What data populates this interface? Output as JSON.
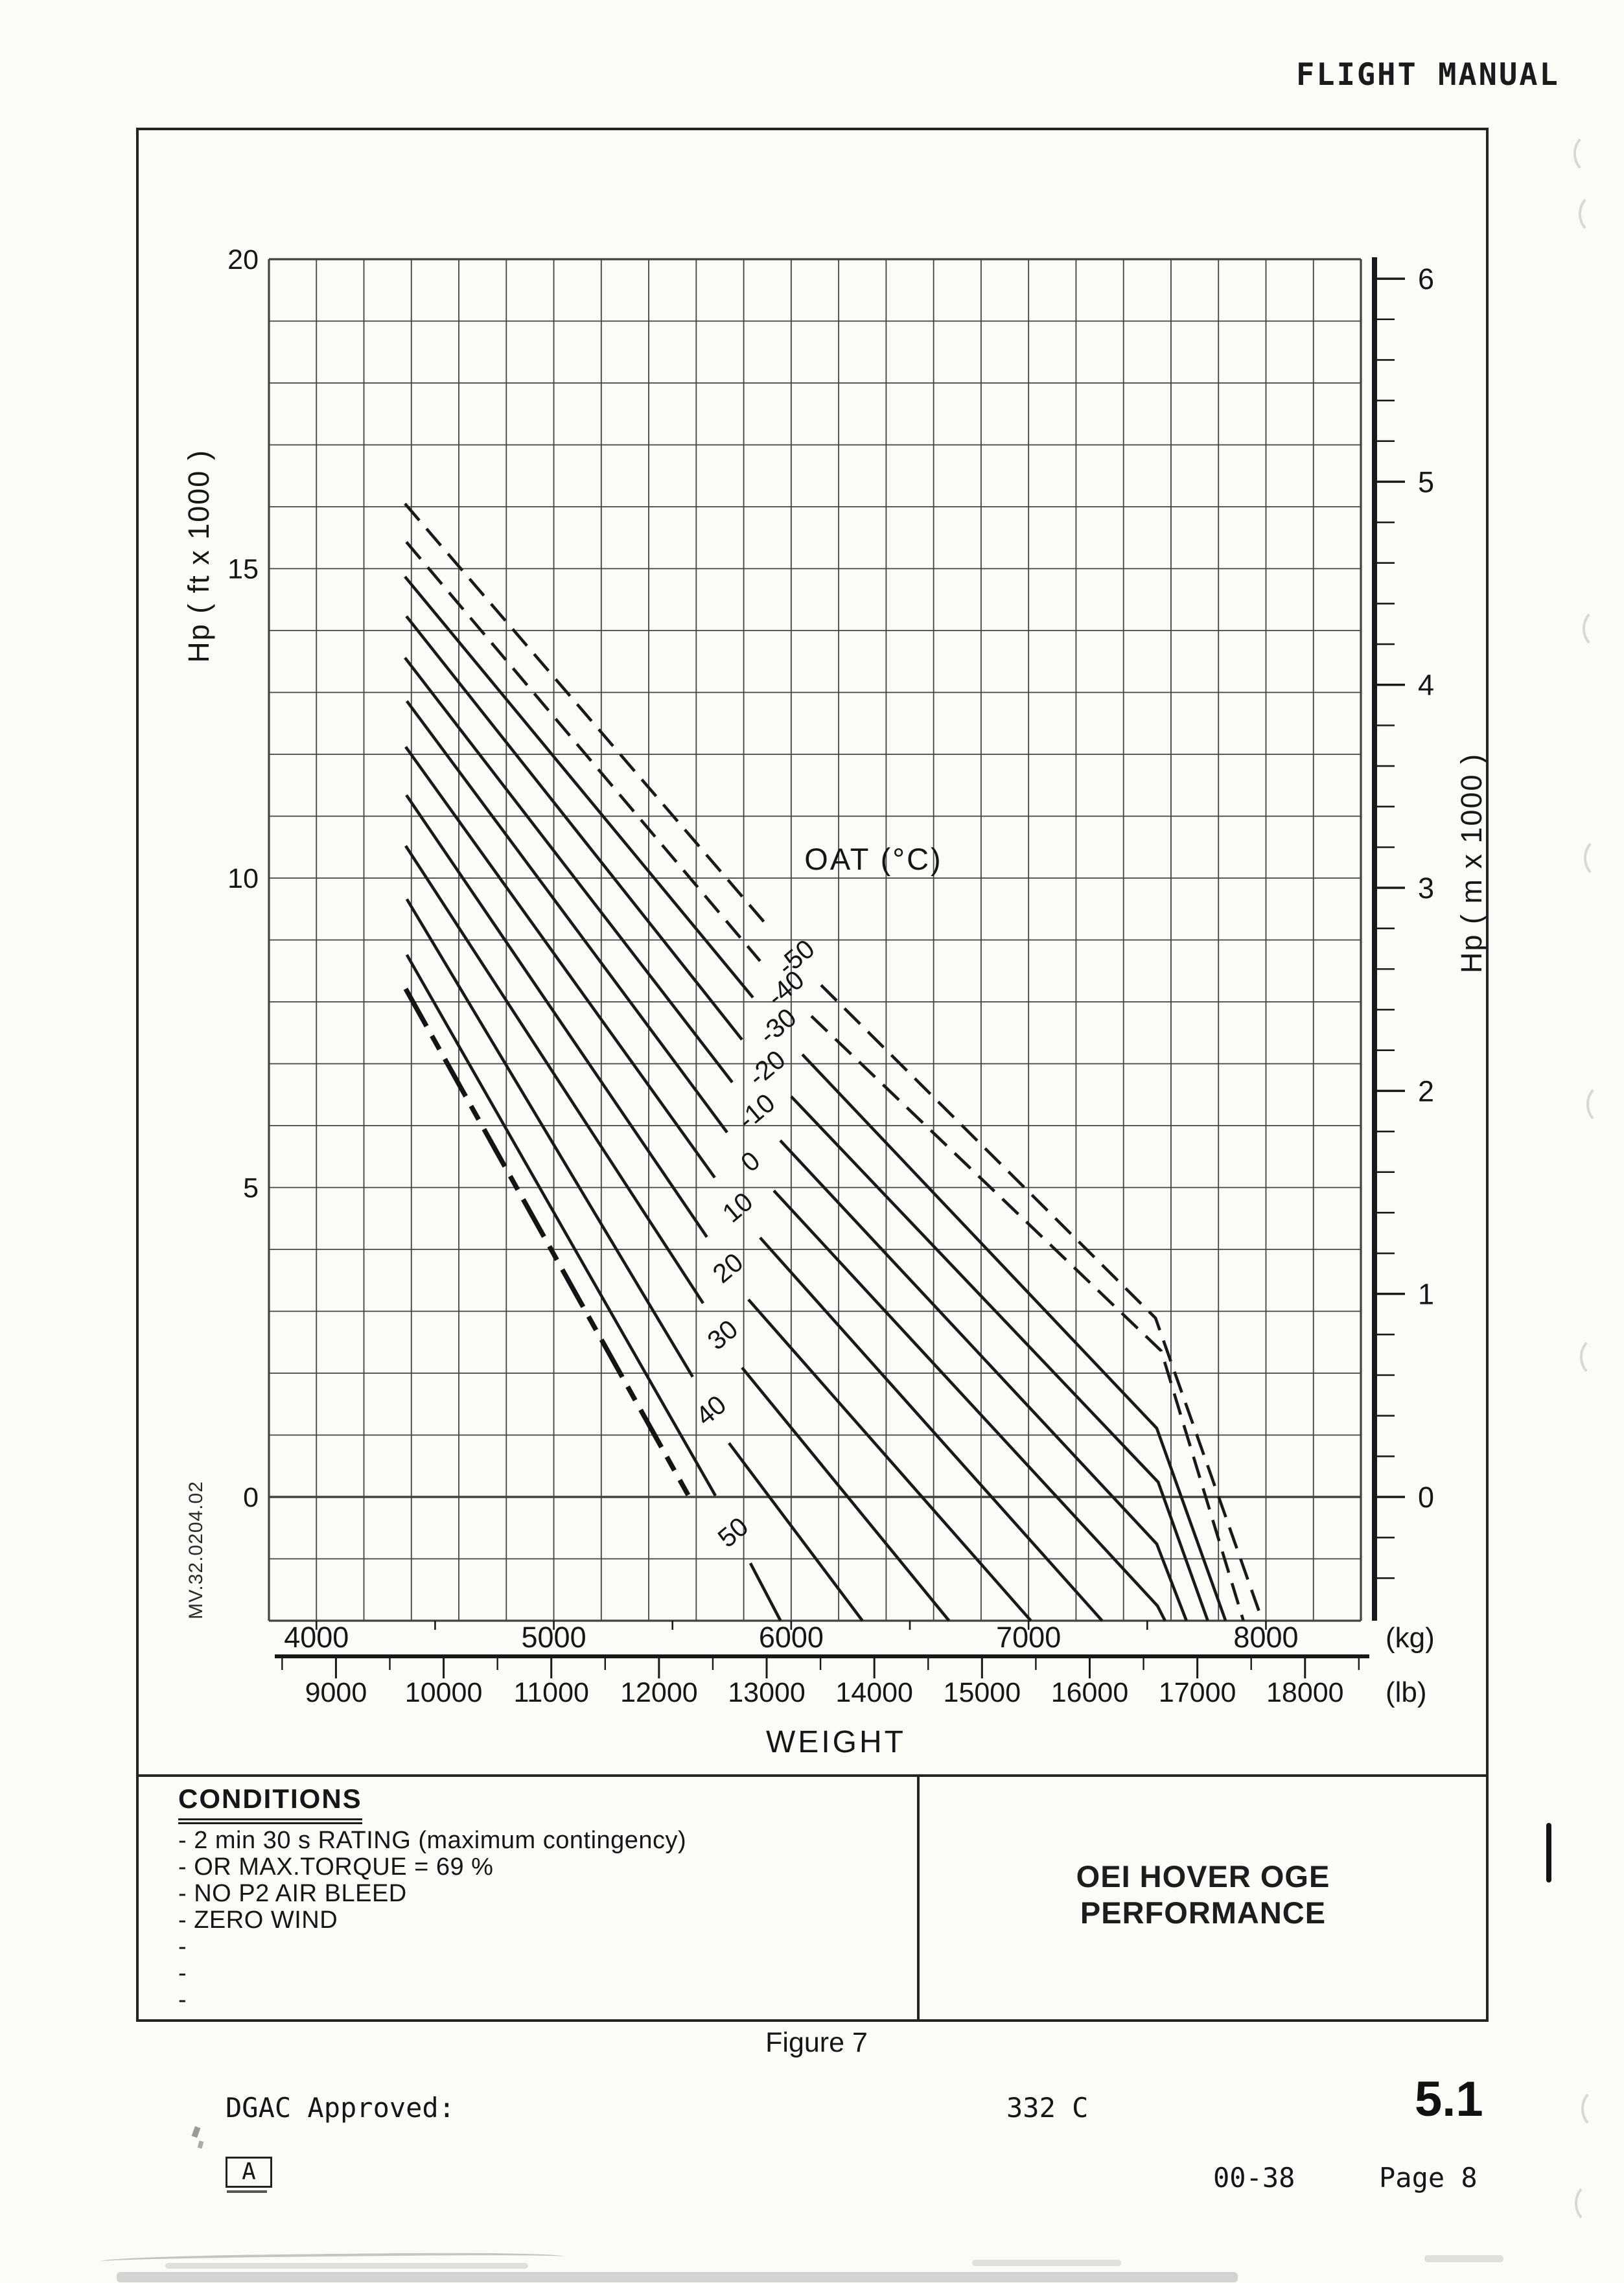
{
  "header": {
    "title": "FLIGHT MANUAL"
  },
  "chart": {
    "oat_title": "OAT (°C)",
    "ref_code": "MV.32.0204.02",
    "x_title": "WEIGHT",
    "y_left": {
      "title": "Hp ( ft x 1000 )",
      "tick_labels": [
        20,
        15,
        10,
        5,
        0
      ]
    },
    "y_right": {
      "title": "Hp ( m x 1000 )",
      "tick_labels": [
        6,
        5,
        4,
        3,
        2,
        1,
        0
      ]
    },
    "x_kg": {
      "labels": [
        4000,
        5000,
        6000,
        7000,
        8000
      ],
      "unit": "(kg)"
    },
    "x_lb": {
      "labels": [
        9000,
        10000,
        11000,
        12000,
        13000,
        14000,
        15000,
        16000,
        17000,
        18000
      ],
      "unit": "(lb)"
    },
    "chart_data": {
      "type": "line",
      "xlabel": "WEIGHT",
      "ylabel_left": "Hp ( ft x 1000 )",
      "ylabel_right": "Hp ( m x 1000 )",
      "x_range_kg": [
        3800,
        8400
      ],
      "y_range_ft": [
        -2000,
        20000
      ],
      "y_range_m": [
        0,
        6
      ],
      "grid": "on",
      "series_label": "OAT (°C)",
      "series": [
        {
          "oat_c": -50,
          "style": "dashed",
          "label_anchor": {
            "kg": 6020,
            "ft": 8720
          },
          "segments_kg_ft": [
            [
              [
                4373,
                16050
              ],
              [
                5913,
                9170
              ]
            ],
            [
              [
                6126,
                8270
              ],
              [
                7535,
                2890
              ],
              [
                7985,
                -2000
              ]
            ]
          ]
        },
        {
          "oat_c": -40,
          "style": "dashed",
          "label_anchor": {
            "kg": 5976,
            "ft": 8220
          },
          "segments_kg_ft": [
            [
              [
                4379,
                15430
              ],
              [
                5869,
                8660
              ]
            ],
            [
              [
                6085,
                7770
              ],
              [
                7559,
                2360
              ],
              [
                7905,
                -2000
              ]
            ]
          ]
        },
        {
          "oat_c": -30,
          "style": "solid",
          "label_anchor": {
            "kg": 5943,
            "ft": 7610
          },
          "segments_kg_ft": [
            [
              [
                4373,
                14870
              ],
              [
                5839,
                8070
              ]
            ],
            [
              [
                6047,
                7150
              ],
              [
                7540,
                1110
              ],
              [
                7830,
                -2000
              ]
            ]
          ]
        },
        {
          "oat_c": -20,
          "style": "solid",
          "label_anchor": {
            "kg": 5897,
            "ft": 6930
          },
          "segments_kg_ft": [
            [
              [
                4379,
                14230
              ],
              [
                5793,
                7390
              ]
            ],
            [
              [
                6000,
                6470
              ],
              [
                7546,
                240
              ],
              [
                7755,
                -2000
              ]
            ]
          ]
        },
        {
          "oat_c": -10,
          "style": "solid",
          "label_anchor": {
            "kg": 5853,
            "ft": 6230
          },
          "segments_kg_ft": [
            [
              [
                4373,
                13560
              ],
              [
                5752,
                6700
              ]
            ],
            [
              [
                5954,
                5760
              ],
              [
                7540,
                -760
              ],
              [
                7665,
                -2000
              ]
            ]
          ]
        },
        {
          "oat_c": 0,
          "style": "solid",
          "label_anchor": {
            "kg": 5828,
            "ft": 5420
          },
          "segments_kg_ft": [
            [
              [
                4381,
                12860
              ],
              [
                5730,
                5890
              ]
            ],
            [
              [
                5927,
                4950
              ],
              [
                7543,
                -1760
              ],
              [
                7575,
                -2000
              ]
            ]
          ]
        },
        {
          "oat_c": 10,
          "style": "solid",
          "label_anchor": {
            "kg": 5774,
            "ft": 4680
          },
          "segments_kg_ft": [
            [
              [
                4376,
                12120
              ],
              [
                5678,
                5160
              ]
            ],
            [
              [
                5869,
                4190
              ],
              [
                7310,
                -2000
              ]
            ]
          ]
        },
        {
          "oat_c": 20,
          "style": "solid",
          "label_anchor": {
            "kg": 5733,
            "ft": 3700
          },
          "segments_kg_ft": [
            [
              [
                4379,
                11340
              ],
              [
                5645,
                4200
              ]
            ],
            [
              [
                5820,
                3190
              ],
              [
                7010,
                -2000
              ]
            ]
          ]
        },
        {
          "oat_c": 30,
          "style": "solid",
          "label_anchor": {
            "kg": 5711,
            "ft": 2620
          },
          "segments_kg_ft": [
            [
              [
                4376,
                10520
              ],
              [
                5629,
                3130
              ]
            ],
            [
              [
                5793,
                2090
              ],
              [
                6665,
                -2000
              ]
            ]
          ]
        },
        {
          "oat_c": 40,
          "style": "solid",
          "label_anchor": {
            "kg": 5662,
            "ft": 1400
          },
          "segments_kg_ft": [
            [
              [
                4381,
                9660
              ],
              [
                5585,
                1940
              ]
            ],
            [
              [
                5738,
                870
              ],
              [
                6300,
                -2000
              ]
            ]
          ]
        },
        {
          "oat_c": 50,
          "style": "solid",
          "label_anchor": {
            "kg": 5755,
            "ft": -570
          },
          "segments_kg_ft": [
            [
              [
                4381,
                8760
              ],
              [
                5681,
                20
              ]
            ],
            [
              [
                5828,
                -1070
              ],
              [
                5955,
                -2000
              ]
            ]
          ]
        }
      ],
      "limit_line": {
        "style": "bold-dashdot",
        "points_kg_ft": [
          [
            4376,
            8210
          ],
          [
            5566,
            30
          ]
        ]
      }
    }
  },
  "conditions": {
    "heading": "CONDITIONS",
    "items": [
      "- 2 min 30 s RATING (maximum contingency)",
      "- OR MAX.TORQUE = 69 %",
      "- NO P2 AIR BLEED",
      "- ZERO WIND",
      "-",
      "-",
      "-"
    ]
  },
  "title_block": {
    "line1": "OEI HOVER OGE",
    "line2": "PERFORMANCE"
  },
  "figure_caption": "Figure 7",
  "footer": {
    "approval": "DGAC Approved:",
    "aircraft_type": "332 C",
    "section": "5.1",
    "revision": "A",
    "doc_code": "00-38",
    "page": "Page 8"
  }
}
